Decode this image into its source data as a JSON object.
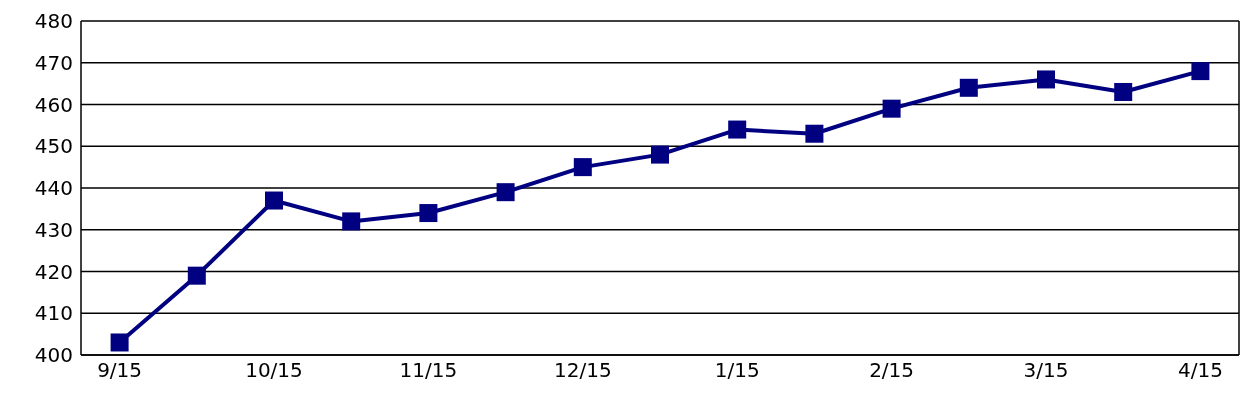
{
  "chart_data": {
    "type": "line",
    "categories": [
      "9/15",
      null,
      "10/15",
      null,
      "11/15",
      null,
      "12/15",
      null,
      "1/15",
      null,
      "2/15",
      null,
      "3/15",
      null,
      "4/15"
    ],
    "series": [
      {
        "color": "#000080",
        "values": [
          403,
          419,
          437,
          432,
          434,
          439,
          445,
          448,
          454,
          453,
          459,
          464,
          466,
          463,
          468
        ]
      }
    ],
    "ylim": [
      400,
      480
    ],
    "yticks": [
      400,
      410,
      420,
      430,
      440,
      450,
      460,
      470,
      480
    ],
    "grid": "y",
    "marker": "square",
    "line_style": "solid"
  }
}
